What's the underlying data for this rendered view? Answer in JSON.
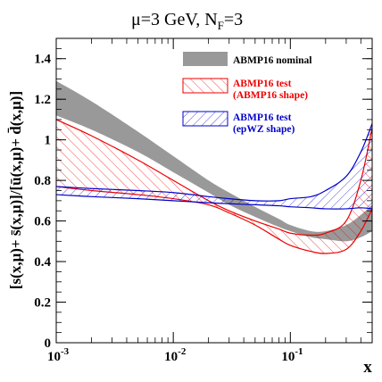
{
  "chart_data": {
    "type": "area",
    "title": {
      "main": "μ=3 GeV, N",
      "sub": "F",
      "tail": "=3"
    },
    "xlabel": "x",
    "ylabel": "[s(x,μ)+ s̄(x,μ)]/[ū(x,μ)+ d̄(x,μ)]",
    "x_scale": "log",
    "xlim": [
      0.001,
      0.5
    ],
    "ylim": [
      0,
      1.5
    ],
    "x_ticks": [
      {
        "value": 0.001,
        "base": "10",
        "exp": "-3"
      },
      {
        "value": 0.01,
        "base": "10",
        "exp": "-2"
      },
      {
        "value": 0.1,
        "base": "10",
        "exp": "-1"
      }
    ],
    "y_ticks": [
      {
        "value": 0,
        "label": "0"
      },
      {
        "value": 0.2,
        "label": "0.2"
      },
      {
        "value": 0.4,
        "label": "0.4"
      },
      {
        "value": 0.6,
        "label": "0.6"
      },
      {
        "value": 0.8,
        "label": "0.8"
      },
      {
        "value": 1.0,
        "label": "1"
      },
      {
        "value": 1.2,
        "label": "1.2"
      },
      {
        "value": 1.4,
        "label": "1.4"
      }
    ],
    "series": [
      {
        "name": "ABMP16 nominal",
        "style": "solid-fill",
        "color": "#999999",
        "x": [
          0.001,
          0.002,
          0.005,
          0.01,
          0.02,
          0.03,
          0.05,
          0.08,
          0.1,
          0.15,
          0.2,
          0.3,
          0.4,
          0.5
        ],
        "upper": [
          1.29,
          1.19,
          1.04,
          0.92,
          0.8,
          0.74,
          0.67,
          0.61,
          0.58,
          0.55,
          0.55,
          0.58,
          0.63,
          0.68
        ],
        "lower": [
          1.12,
          1.05,
          0.94,
          0.84,
          0.74,
          0.68,
          0.62,
          0.57,
          0.55,
          0.52,
          0.51,
          0.5,
          0.52,
          0.55
        ]
      },
      {
        "name": "ABMP16 test",
        "name_note": "(ABMP16 shape)",
        "style": "hatched",
        "color": "#ee0000",
        "x": [
          0.001,
          0.002,
          0.005,
          0.01,
          0.02,
          0.03,
          0.05,
          0.08,
          0.1,
          0.15,
          0.2,
          0.3,
          0.4,
          0.5
        ],
        "upper": [
          1.1,
          1.02,
          0.9,
          0.8,
          0.7,
          0.65,
          0.6,
          0.56,
          0.54,
          0.53,
          0.54,
          0.6,
          0.8,
          1.06
        ],
        "lower": [
          0.77,
          0.75,
          0.73,
          0.71,
          0.68,
          0.64,
          0.58,
          0.51,
          0.48,
          0.45,
          0.44,
          0.46,
          0.55,
          0.66
        ]
      },
      {
        "name": "ABMP16 test",
        "name_note": "(epWZ shape)",
        "style": "hatched",
        "color": "#0000cc",
        "x": [
          0.001,
          0.002,
          0.005,
          0.01,
          0.02,
          0.03,
          0.05,
          0.08,
          0.1,
          0.15,
          0.2,
          0.3,
          0.4,
          0.5
        ],
        "upper": [
          0.77,
          0.76,
          0.75,
          0.74,
          0.72,
          0.71,
          0.7,
          0.7,
          0.71,
          0.72,
          0.75,
          0.82,
          0.94,
          1.08
        ],
        "lower": [
          0.73,
          0.72,
          0.71,
          0.7,
          0.69,
          0.685,
          0.68,
          0.675,
          0.67,
          0.665,
          0.66,
          0.66,
          0.665,
          0.66
        ]
      }
    ],
    "grid": false,
    "legend_position": "top-right"
  }
}
